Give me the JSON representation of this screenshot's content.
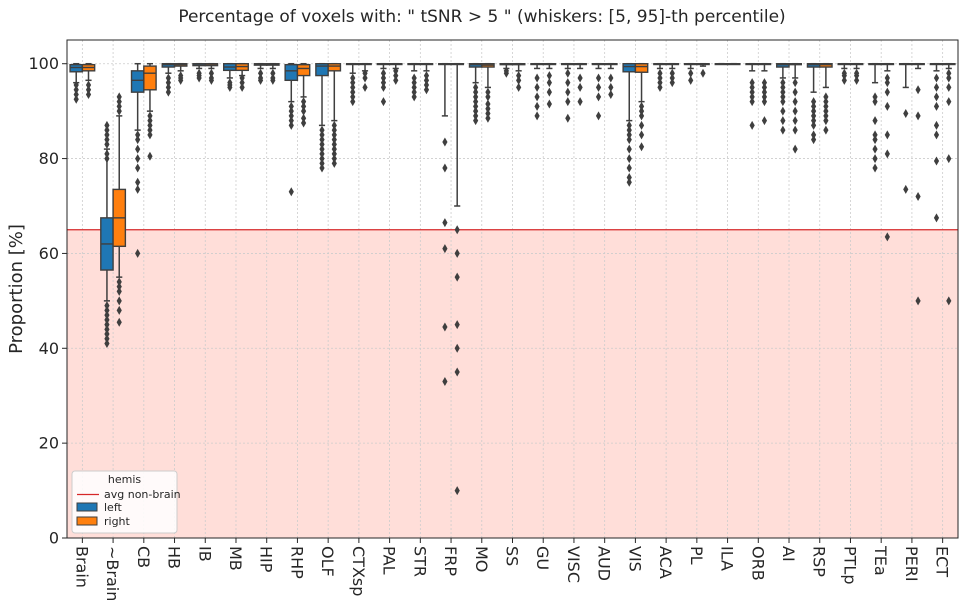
{
  "chart_data": {
    "type": "box",
    "title": "Percentage of voxels with:  \" tSNR  >  5 \"  (whiskers: [5, 95]-th percentile)",
    "ylabel": "Proportion [%]",
    "xlabel": "",
    "ylim": [
      0,
      105
    ],
    "yticks": [
      0,
      20,
      40,
      60,
      80,
      100
    ],
    "grid": true,
    "threshold": {
      "name": "avg non-brain",
      "value": 65,
      "color": "#d62728",
      "fill": "#ffded9"
    },
    "legend": {
      "title": "hemis",
      "placement": "lower-left",
      "entries": [
        "avg non-brain",
        "left",
        "right"
      ]
    },
    "series": [
      {
        "name": "left",
        "color": "#1f77b4"
      },
      {
        "name": "right",
        "color": "#ff7f0e"
      }
    ],
    "categories": [
      "Brain",
      "~Brain",
      "CB",
      "HB",
      "IB",
      "MB",
      "HIP",
      "RHP",
      "OLF",
      "CTXsp",
      "PAL",
      "STR",
      "FRP",
      "MO",
      "SS",
      "GU",
      "VISC",
      "AUD",
      "VIS",
      "ACA",
      "PL",
      "ILA",
      "ORB",
      "AI",
      "RSP",
      "PTLp",
      "TEa",
      "PERI",
      "ECT"
    ],
    "boxes": [
      [
        {
          "wl": 96,
          "q1": 98.3,
          "med": 99.2,
          "q3": 99.8,
          "wh": 100,
          "out": [
            92.5,
            93.5,
            94.5,
            95.5
          ]
        },
        {
          "wl": 96.5,
          "q1": 98.5,
          "med": 99.2,
          "q3": 99.8,
          "wh": 100,
          "out": [
            93.5,
            94.5,
            95.5
          ]
        }
      ],
      [
        {
          "wl": 50,
          "q1": 56.5,
          "med": 62,
          "q3": 67.5,
          "wh": 82,
          "out": [
            41,
            42,
            43,
            44,
            45,
            46,
            47,
            48,
            49,
            80,
            81,
            83,
            84,
            85,
            86,
            87
          ]
        },
        {
          "wl": 55,
          "q1": 61.5,
          "med": 67.5,
          "q3": 73.5,
          "wh": 89,
          "out": [
            45.5,
            48,
            50,
            52,
            53,
            54,
            90,
            91,
            92,
            93
          ]
        }
      ],
      [
        {
          "wl": 86,
          "q1": 94,
          "med": 96.5,
          "q3": 98.5,
          "wh": 100,
          "out": [
            60,
            73.5,
            75,
            78,
            80,
            82,
            84,
            85
          ]
        },
        {
          "wl": 90,
          "q1": 94.5,
          "med": 98,
          "q3": 99.5,
          "wh": 100,
          "out": [
            80.5,
            85,
            86,
            87,
            88,
            89
          ]
        }
      ],
      [
        {
          "wl": 98,
          "q1": 99.3,
          "med": 99.8,
          "q3": 100,
          "wh": 100,
          "out": [
            94,
            95,
            96,
            97
          ]
        },
        {
          "wl": 98.5,
          "q1": 99.5,
          "med": 99.8,
          "q3": 100,
          "wh": 100,
          "out": [
            96.5,
            97,
            97.5
          ]
        }
      ],
      [
        {
          "wl": 99,
          "q1": 99.6,
          "med": 99.9,
          "q3": 100,
          "wh": 100,
          "out": [
            97,
            97.5,
            98
          ]
        },
        {
          "wl": 99,
          "q1": 99.6,
          "med": 99.9,
          "q3": 100,
          "wh": 100,
          "out": [
            96.5,
            97,
            98
          ]
        }
      ],
      [
        {
          "wl": 97,
          "q1": 98.6,
          "med": 99.3,
          "q3": 100,
          "wh": 100,
          "out": [
            95,
            95.5,
            96
          ]
        },
        {
          "wl": 97.5,
          "q1": 98.6,
          "med": 99.4,
          "q3": 100,
          "wh": 100,
          "out": [
            95,
            96,
            97
          ]
        }
      ],
      [
        {
          "wl": 99,
          "q1": 99.7,
          "med": 99.9,
          "q3": 100,
          "wh": 100,
          "out": [
            96.5,
            97,
            98
          ]
        },
        {
          "wl": 99,
          "q1": 99.7,
          "med": 99.9,
          "q3": 100,
          "wh": 100,
          "out": [
            96.5,
            97,
            98
          ]
        }
      ],
      [
        {
          "wl": 92,
          "q1": 96.5,
          "med": 98.5,
          "q3": 99.8,
          "wh": 100,
          "out": [
            73,
            87,
            88,
            89,
            90,
            91
          ]
        },
        {
          "wl": 93,
          "q1": 97.5,
          "med": 99,
          "q3": 99.8,
          "wh": 100,
          "out": [
            87.5,
            88.5,
            90,
            91,
            92
          ]
        }
      ],
      [
        {
          "wl": 87,
          "q1": 97.5,
          "med": 99.5,
          "q3": 100,
          "wh": 100,
          "out": [
            78,
            79,
            80,
            81,
            82,
            83,
            84,
            85,
            86
          ]
        },
        {
          "wl": 88,
          "q1": 98.5,
          "med": 99.5,
          "q3": 100,
          "wh": 100,
          "out": [
            79,
            80,
            81,
            82,
            83,
            84,
            85,
            86,
            87
          ]
        }
      ],
      [
        {
          "wl": 98,
          "q1": 100,
          "med": 100,
          "q3": 100,
          "wh": 100,
          "out": [
            92,
            93,
            94,
            95,
            96,
            97
          ]
        },
        {
          "wl": 98.5,
          "q1": 100,
          "med": 100,
          "q3": 100,
          "wh": 100,
          "out": [
            95,
            97,
            98
          ]
        }
      ],
      [
        {
          "wl": 99,
          "q1": 100,
          "med": 100,
          "q3": 100,
          "wh": 100,
          "out": [
            92,
            95,
            96,
            97,
            98
          ]
        },
        {
          "wl": 99,
          "q1": 100,
          "med": 100,
          "q3": 100,
          "wh": 100,
          "out": [
            96.5,
            97.5,
            98.5
          ]
        }
      ],
      [
        {
          "wl": 98.5,
          "q1": 100,
          "med": 100,
          "q3": 100,
          "wh": 100,
          "out": [
            93,
            94,
            95,
            96,
            97
          ]
        },
        {
          "wl": 98.5,
          "q1": 100,
          "med": 100,
          "q3": 100,
          "wh": 100,
          "out": [
            94.5,
            95.5,
            96.5,
            97.5
          ]
        }
      ],
      [
        {
          "wl": 89,
          "q1": 100,
          "med": 100,
          "q3": 100,
          "wh": 100,
          "out": [
            33,
            44.5,
            61,
            66.5,
            78,
            83.5
          ]
        },
        {
          "wl": 70,
          "q1": 100,
          "med": 100,
          "q3": 100,
          "wh": 100,
          "out": [
            10,
            35,
            40,
            45,
            55,
            60,
            65
          ]
        }
      ],
      [
        {
          "wl": 96,
          "q1": 99.3,
          "med": 99.8,
          "q3": 100,
          "wh": 100,
          "out": [
            88,
            89,
            90,
            91,
            92,
            93,
            94,
            95
          ]
        },
        {
          "wl": 95,
          "q1": 99.3,
          "med": 99.7,
          "q3": 100,
          "wh": 100,
          "out": [
            88.5,
            89.5,
            90.5,
            91.5,
            93,
            94
          ]
        }
      ],
      [
        {
          "wl": 99,
          "q1": 99.8,
          "med": 100,
          "q3": 100,
          "wh": 100,
          "out": [
            98,
            98.5
          ]
        },
        {
          "wl": 98.5,
          "q1": 99.8,
          "med": 100,
          "q3": 100,
          "wh": 100,
          "out": [
            95,
            96.5,
            97.5
          ]
        }
      ],
      [
        {
          "wl": 99,
          "q1": 100,
          "med": 100,
          "q3": 100,
          "wh": 100,
          "out": [
            89,
            91,
            93,
            95,
            97
          ]
        },
        {
          "wl": 99,
          "q1": 100,
          "med": 100,
          "q3": 100,
          "wh": 100,
          "out": [
            91.5,
            94,
            96,
            97.5
          ]
        }
      ],
      [
        {
          "wl": 99,
          "q1": 100,
          "med": 100,
          "q3": 100,
          "wh": 100,
          "out": [
            88.5,
            92,
            94,
            96,
            98
          ]
        },
        {
          "wl": 99,
          "q1": 100,
          "med": 100,
          "q3": 100,
          "wh": 100,
          "out": [
            92,
            95,
            97
          ]
        }
      ],
      [
        {
          "wl": 99,
          "q1": 100,
          "med": 100,
          "q3": 100,
          "wh": 100,
          "out": [
            89,
            93,
            95,
            97
          ]
        },
        {
          "wl": 99,
          "q1": 100,
          "med": 100,
          "q3": 100,
          "wh": 100,
          "out": [
            93.5,
            95,
            97
          ]
        }
      ],
      [
        {
          "wl": 88,
          "q1": 98.3,
          "med": 99.4,
          "q3": 100,
          "wh": 100,
          "out": [
            75,
            76,
            78,
            80,
            82,
            84,
            85,
            86,
            87
          ]
        },
        {
          "wl": 92,
          "q1": 98.2,
          "med": 99.4,
          "q3": 100,
          "wh": 100,
          "out": [
            82.5,
            85,
            87,
            89,
            90,
            91
          ]
        }
      ],
      [
        {
          "wl": 99,
          "q1": 100,
          "med": 100,
          "q3": 100,
          "wh": 100,
          "out": [
            95,
            96,
            97,
            98
          ]
        },
        {
          "wl": 99,
          "q1": 100,
          "med": 100,
          "q3": 100,
          "wh": 100,
          "out": [
            96,
            97,
            98
          ]
        }
      ],
      [
        {
          "wl": 99,
          "q1": 100,
          "med": 100,
          "q3": 100,
          "wh": 100,
          "out": [
            96.5,
            98
          ]
        },
        {
          "wl": 99.5,
          "q1": 100,
          "med": 100,
          "q3": 100,
          "wh": 100,
          "out": [
            98
          ]
        }
      ],
      [
        {
          "wl": 100,
          "q1": 100,
          "med": 100,
          "q3": 100,
          "wh": 100,
          "out": []
        },
        {
          "wl": 100,
          "q1": 100,
          "med": 100,
          "q3": 100,
          "wh": 100,
          "out": []
        }
      ],
      [
        {
          "wl": 98.5,
          "q1": 100,
          "med": 100,
          "q3": 100,
          "wh": 100,
          "out": [
            87,
            92,
            93,
            94,
            95,
            96
          ]
        },
        {
          "wl": 98.5,
          "q1": 100,
          "med": 100,
          "q3": 100,
          "wh": 100,
          "out": [
            88,
            92,
            93,
            94,
            95,
            96
          ]
        }
      ],
      [
        {
          "wl": 97,
          "q1": 99.3,
          "med": 99.8,
          "q3": 100,
          "wh": 100,
          "out": [
            86,
            88,
            90,
            92,
            93,
            94,
            95,
            96
          ]
        },
        {
          "wl": 97,
          "q1": 99.8,
          "med": 100,
          "q3": 100,
          "wh": 100,
          "out": [
            82,
            86,
            88,
            90,
            92,
            94,
            96
          ]
        }
      ],
      [
        {
          "wl": 94,
          "q1": 99.3,
          "med": 99.8,
          "q3": 100,
          "wh": 100,
          "out": [
            84,
            85,
            87,
            88,
            89,
            90,
            91,
            92
          ]
        },
        {
          "wl": 95,
          "q1": 99.3,
          "med": 99.8,
          "q3": 100,
          "wh": 100,
          "out": [
            86,
            88,
            89,
            90,
            91,
            92,
            93
          ]
        }
      ],
      [
        {
          "wl": 99,
          "q1": 100,
          "med": 100,
          "q3": 100,
          "wh": 100,
          "out": [
            96.5,
            97.5,
            98
          ]
        },
        {
          "wl": 99,
          "q1": 100,
          "med": 100,
          "q3": 100,
          "wh": 100,
          "out": [
            96.5,
            97.5,
            98
          ]
        }
      ],
      [
        {
          "wl": 96,
          "q1": 100,
          "med": 100,
          "q3": 100,
          "wh": 100,
          "out": [
            78,
            80,
            82,
            84,
            85,
            88,
            92,
            93
          ]
        },
        {
          "wl": 98.5,
          "q1": 100,
          "med": 100,
          "q3": 100,
          "wh": 100,
          "out": [
            63.5,
            81,
            85,
            91,
            94,
            96,
            97
          ]
        }
      ],
      [
        {
          "wl": 95,
          "q1": 100,
          "med": 100,
          "q3": 100,
          "wh": 100,
          "out": [
            73.5,
            89.5
          ]
        },
        {
          "wl": 99,
          "q1": 100,
          "med": 100,
          "q3": 100,
          "wh": 100,
          "out": [
            50,
            72,
            89,
            94.5
          ]
        }
      ],
      [
        {
          "wl": 98.5,
          "q1": 100,
          "med": 100,
          "q3": 100,
          "wh": 100,
          "out": [
            67.5,
            79.5,
            85,
            87,
            91,
            93,
            95,
            97
          ]
        },
        {
          "wl": 99,
          "q1": 100,
          "med": 100,
          "q3": 100,
          "wh": 100,
          "out": [
            50,
            80,
            92,
            95,
            97,
            98
          ]
        }
      ]
    ]
  }
}
